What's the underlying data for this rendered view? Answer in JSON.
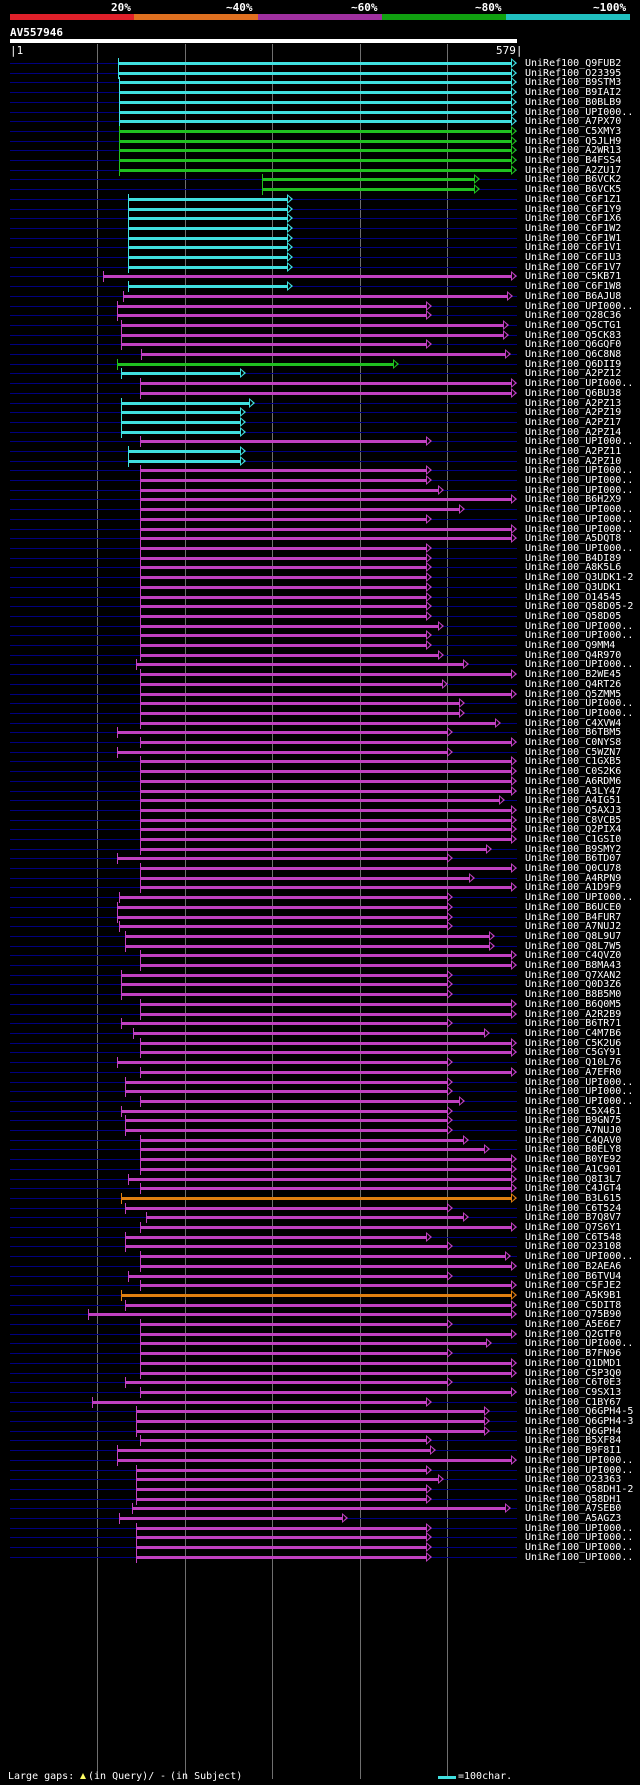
{
  "header": {
    "identity_scale": [
      {
        "label": "20%",
        "color": "#e0202a"
      },
      {
        "label": "~40%",
        "color": "#e07020"
      },
      {
        "label": "~60%",
        "color": "#a030a0"
      },
      {
        "label": "~80%",
        "color": "#10a010"
      },
      {
        "label": "~100%",
        "color": "#20c0c0"
      }
    ],
    "query_id": "AV557946",
    "ruler_start": "1",
    "ruler_end": "579"
  },
  "colors": {
    "cyan": "#40e0e0",
    "green": "#20c020",
    "purple": "#c040c0",
    "orange": "#e08010",
    "base": "#00007f"
  },
  "hits": [
    {
      "label": "UniRef100_Q9FUB2",
      "color": "cyan",
      "start": 124,
      "end": 579
    },
    {
      "label": "UniRef100_O23395",
      "color": "cyan",
      "start": 124,
      "end": 579
    },
    {
      "label": "UniRef100_B9STM3",
      "color": "cyan",
      "start": 125,
      "end": 579
    },
    {
      "label": "UniRef100_B9IAI2",
      "color": "cyan",
      "start": 125,
      "end": 579
    },
    {
      "label": "UniRef100_B0BLB9",
      "color": "cyan",
      "start": 125,
      "end": 579
    },
    {
      "label": "UniRef100_UPI000..",
      "color": "cyan",
      "start": 125,
      "end": 579
    },
    {
      "label": "UniRef100_A7PX70",
      "color": "cyan",
      "start": 125,
      "end": 579
    },
    {
      "label": "UniRef100_C5XMY3",
      "color": "green",
      "start": 125,
      "end": 579
    },
    {
      "label": "UniRef100_Q5JLH9",
      "color": "green",
      "start": 125,
      "end": 579
    },
    {
      "label": "UniRef100_A2WR13",
      "color": "green",
      "start": 125,
      "end": 579
    },
    {
      "label": "UniRef100_B4FSS4",
      "color": "green",
      "start": 125,
      "end": 579
    },
    {
      "label": "UniRef100_A2ZU17",
      "color": "green",
      "start": 125,
      "end": 579
    },
    {
      "label": "UniRef100_B6VCK2",
      "color": "green",
      "start": 288,
      "end": 537
    },
    {
      "label": "UniRef100_B6VCK5",
      "color": "green",
      "start": 288,
      "end": 537
    },
    {
      "label": "UniRef100_C6F1Z1",
      "color": "cyan",
      "start": 135,
      "end": 324
    },
    {
      "label": "UniRef100_C6F1Y9",
      "color": "cyan",
      "start": 135,
      "end": 324
    },
    {
      "label": "UniRef100_C6F1X6",
      "color": "cyan",
      "start": 135,
      "end": 324
    },
    {
      "label": "UniRef100_C6F1W2",
      "color": "cyan",
      "start": 135,
      "end": 324
    },
    {
      "label": "UniRef100_C6F1W1",
      "color": "cyan",
      "start": 135,
      "end": 324
    },
    {
      "label": "UniRef100_C6F1V1",
      "color": "cyan",
      "start": 135,
      "end": 324
    },
    {
      "label": "UniRef100_C6F1U3",
      "color": "cyan",
      "start": 135,
      "end": 324
    },
    {
      "label": "UniRef100_C6F1V7",
      "color": "cyan",
      "start": 135,
      "end": 324
    },
    {
      "label": "UniRef100_C5KB71",
      "color": "purple",
      "start": 107,
      "end": 579
    },
    {
      "label": "UniRef100_C6F1W8",
      "color": "cyan",
      "start": 135,
      "end": 324
    },
    {
      "label": "UniRef100_B6AJU8",
      "color": "purple",
      "start": 130,
      "end": 575
    },
    {
      "label": "UniRef100_UPI000..",
      "color": "purple",
      "start": 123,
      "end": 482
    },
    {
      "label": "UniRef100_Q28C36",
      "color": "purple",
      "start": 123,
      "end": 482
    },
    {
      "label": "UniRef100_Q5CTG1",
      "color": "purple",
      "start": 128,
      "end": 570
    },
    {
      "label": "UniRef100_Q5CK83",
      "color": "purple",
      "start": 128,
      "end": 570
    },
    {
      "label": "UniRef100_Q6GQF0",
      "color": "purple",
      "start": 128,
      "end": 482
    },
    {
      "label": "UniRef100_Q6C8N8",
      "color": "purple",
      "start": 150,
      "end": 572
    },
    {
      "label": "UniRef100_Q6DII9",
      "color": "green",
      "start": 123,
      "end": 444
    },
    {
      "label": "UniRef100_A2PZ12",
      "color": "cyan",
      "start": 128,
      "end": 270
    },
    {
      "label": "UniRef100_UPI000..",
      "color": "purple",
      "start": 149,
      "end": 579
    },
    {
      "label": "UniRef100_Q6BU38",
      "color": "purple",
      "start": 149,
      "end": 579
    },
    {
      "label": "UniRef100_A2PZ13",
      "color": "cyan",
      "start": 128,
      "end": 280
    },
    {
      "label": "UniRef100_A2PZ19",
      "color": "cyan",
      "start": 128,
      "end": 270
    },
    {
      "label": "UniRef100_A2PZ17",
      "color": "cyan",
      "start": 128,
      "end": 270
    },
    {
      "label": "UniRef100_A2PZ14",
      "color": "cyan",
      "start": 128,
      "end": 270
    },
    {
      "label": "UniRef100_UPI000..",
      "color": "purple",
      "start": 149,
      "end": 482
    },
    {
      "label": "UniRef100_A2PZ11",
      "color": "cyan",
      "start": 135,
      "end": 270
    },
    {
      "label": "UniRef100_A2PZ10",
      "color": "cyan",
      "start": 135,
      "end": 270
    },
    {
      "label": "UniRef100_UPI000..",
      "color": "purple",
      "start": 149,
      "end": 482
    },
    {
      "label": "UniRef100_UPI000..",
      "color": "purple",
      "start": 149,
      "end": 482
    },
    {
      "label": "UniRef100_UPI000..",
      "color": "purple",
      "start": 149,
      "end": 496
    },
    {
      "label": "UniRef100_B6H2X9",
      "color": "purple",
      "start": 149,
      "end": 579
    },
    {
      "label": "UniRef100_UPI000..",
      "color": "purple",
      "start": 149,
      "end": 520
    },
    {
      "label": "UniRef100_UPI000..",
      "color": "purple",
      "start": 149,
      "end": 482
    },
    {
      "label": "UniRef100_UPI000..",
      "color": "purple",
      "start": 149,
      "end": 579
    },
    {
      "label": "UniRef100_A5DQT8",
      "color": "purple",
      "start": 149,
      "end": 579
    },
    {
      "label": "UniRef100_UPI000..",
      "color": "purple",
      "start": 149,
      "end": 482
    },
    {
      "label": "UniRef100_B4DI89",
      "color": "purple",
      "start": 149,
      "end": 482
    },
    {
      "label": "UniRef100_A8K5L6",
      "color": "purple",
      "start": 149,
      "end": 482
    },
    {
      "label": "UniRef100_Q3UDK1-2",
      "color": "purple",
      "start": 149,
      "end": 482
    },
    {
      "label": "UniRef100_Q3UDK1",
      "color": "purple",
      "start": 149,
      "end": 482
    },
    {
      "label": "UniRef100_O14545",
      "color": "purple",
      "start": 149,
      "end": 482
    },
    {
      "label": "UniRef100_Q58D05-2",
      "color": "purple",
      "start": 149,
      "end": 482
    },
    {
      "label": "UniRef100_Q58D05",
      "color": "purple",
      "start": 149,
      "end": 482
    },
    {
      "label": "UniRef100_UPI000..",
      "color": "purple",
      "start": 149,
      "end": 496
    },
    {
      "label": "UniRef100_UPI000..",
      "color": "purple",
      "start": 149,
      "end": 482
    },
    {
      "label": "UniRef100_Q9MM4",
      "color": "purple",
      "start": 149,
      "end": 482
    },
    {
      "label": "UniRef100_Q4R970",
      "color": "purple",
      "start": 149,
      "end": 496
    },
    {
      "label": "UniRef100_UPI000..",
      "color": "purple",
      "start": 145,
      "end": 524
    },
    {
      "label": "UniRef100_B2WE45",
      "color": "purple",
      "start": 149,
      "end": 579
    },
    {
      "label": "UniRef100_Q4RT26",
      "color": "purple",
      "start": 149,
      "end": 500
    },
    {
      "label": "UniRef100_Q5ZMM5",
      "color": "purple",
      "start": 149,
      "end": 579
    },
    {
      "label": "UniRef100_UPI000..",
      "color": "purple",
      "start": 149,
      "end": 520
    },
    {
      "label": "UniRef100_UPI000..",
      "color": "purple",
      "start": 149,
      "end": 520
    },
    {
      "label": "UniRef100_C4XVW4",
      "color": "purple",
      "start": 149,
      "end": 561
    },
    {
      "label": "UniRef100_B6TBM5",
      "color": "purple",
      "start": 123,
      "end": 506
    },
    {
      "label": "UniRef100_C0NYS8",
      "color": "purple",
      "start": 149,
      "end": 579
    },
    {
      "label": "UniRef100_C5WZN7",
      "color": "purple",
      "start": 123,
      "end": 506
    },
    {
      "label": "UniRef100_C1GXB5",
      "color": "purple",
      "start": 149,
      "end": 579
    },
    {
      "label": "UniRef100_C0S2K6",
      "color": "purple",
      "start": 149,
      "end": 579
    },
    {
      "label": "UniRef100_A6RDM6",
      "color": "purple",
      "start": 149,
      "end": 579
    },
    {
      "label": "UniRef100_A3LY47",
      "color": "purple",
      "start": 149,
      "end": 579
    },
    {
      "label": "UniRef100_A4IG51",
      "color": "purple",
      "start": 149,
      "end": 565
    },
    {
      "label": "UniRef100_Q5AXJ3",
      "color": "purple",
      "start": 149,
      "end": 579
    },
    {
      "label": "UniRef100_C8VCB5",
      "color": "purple",
      "start": 149,
      "end": 579
    },
    {
      "label": "UniRef100_Q2PIX4",
      "color": "purple",
      "start": 149,
      "end": 579
    },
    {
      "label": "UniRef100_C1GSI0",
      "color": "purple",
      "start": 149,
      "end": 579
    },
    {
      "label": "UniRef100_B9SMY2",
      "color": "purple",
      "start": 149,
      "end": 551
    },
    {
      "label": "UniRef100_B6TD07",
      "color": "purple",
      "start": 123,
      "end": 506
    },
    {
      "label": "UniRef100_Q0CU78",
      "color": "purple",
      "start": 149,
      "end": 579
    },
    {
      "label": "UniRef100_A4RPN9",
      "color": "purple",
      "start": 149,
      "end": 531
    },
    {
      "label": "UniRef100_A1D9F9",
      "color": "purple",
      "start": 149,
      "end": 579
    },
    {
      "label": "UniRef100_UPI000..",
      "color": "purple",
      "start": 125,
      "end": 506
    },
    {
      "label": "UniRef100_B6UCE0",
      "color": "purple",
      "start": 123,
      "end": 506
    },
    {
      "label": "UniRef100_B4FUR7",
      "color": "purple",
      "start": 123,
      "end": 506
    },
    {
      "label": "UniRef100_A7NUJ2",
      "color": "purple",
      "start": 125,
      "end": 506
    },
    {
      "label": "UniRef100_Q8L9U7",
      "color": "purple",
      "start": 132,
      "end": 554
    },
    {
      "label": "UniRef100_Q8L7W5",
      "color": "purple",
      "start": 132,
      "end": 554
    },
    {
      "label": "UniRef100_C4QVZ0",
      "color": "purple",
      "start": 149,
      "end": 579
    },
    {
      "label": "UniRef100_B8MA43",
      "color": "purple",
      "start": 149,
      "end": 579
    },
    {
      "label": "UniRef100_Q7XAN2",
      "color": "purple",
      "start": 128,
      "end": 506
    },
    {
      "label": "UniRef100_Q0D3Z6",
      "color": "purple",
      "start": 128,
      "end": 506
    },
    {
      "label": "UniRef100_B8B5M0",
      "color": "purple",
      "start": 128,
      "end": 506
    },
    {
      "label": "UniRef100_B6Q0M5",
      "color": "purple",
      "start": 149,
      "end": 579
    },
    {
      "label": "UniRef100_A2R2B9",
      "color": "purple",
      "start": 149,
      "end": 579
    },
    {
      "label": "UniRef100_B6TR71",
      "color": "purple",
      "start": 128,
      "end": 506
    },
    {
      "label": "UniRef100_C4M7B6",
      "color": "purple",
      "start": 141,
      "end": 548
    },
    {
      "label": "UniRef100_C5K2U6",
      "color": "purple",
      "start": 149,
      "end": 579
    },
    {
      "label": "UniRef100_C5GY91",
      "color": "purple",
      "start": 149,
      "end": 579
    },
    {
      "label": "UniRef100_Q10L76",
      "color": "purple",
      "start": 123,
      "end": 506
    },
    {
      "label": "UniRef100_A7EFR0",
      "color": "purple",
      "start": 149,
      "end": 579
    },
    {
      "label": "UniRef100_UPI000..",
      "color": "purple",
      "start": 132,
      "end": 506
    },
    {
      "label": "UniRef100_UPI000..",
      "color": "purple",
      "start": 132,
      "end": 506
    },
    {
      "label": "UniRef100_UPI000..",
      "color": "purple",
      "start": 149,
      "end": 520
    },
    {
      "label": "UniRef100_C5X461",
      "color": "purple",
      "start": 128,
      "end": 506
    },
    {
      "label": "UniRef100_B9GN75",
      "color": "purple",
      "start": 132,
      "end": 506
    },
    {
      "label": "UniRef100_A7NUJ0",
      "color": "purple",
      "start": 132,
      "end": 506
    },
    {
      "label": "UniRef100_C4QAV0",
      "color": "purple",
      "start": 149,
      "end": 524
    },
    {
      "label": "UniRef100_B0ELY8",
      "color": "purple",
      "start": 149,
      "end": 548
    },
    {
      "label": "UniRef100_B0YE92",
      "color": "purple",
      "start": 149,
      "end": 579
    },
    {
      "label": "UniRef100_A1C901",
      "color": "purple",
      "start": 149,
      "end": 579
    },
    {
      "label": "UniRef100_Q8I3L7",
      "color": "purple",
      "start": 135,
      "end": 579
    },
    {
      "label": "UniRef100_C4JGT4",
      "color": "purple",
      "start": 149,
      "end": 579
    },
    {
      "label": "UniRef100_B3L615",
      "color": "orange",
      "start": 128,
      "end": 579
    },
    {
      "label": "UniRef100_C6T524",
      "color": "purple",
      "start": 132,
      "end": 506
    },
    {
      "label": "UniRef100_B7Q8V7",
      "color": "purple",
      "start": 156,
      "end": 524
    },
    {
      "label": "UniRef100_Q7S6Y1",
      "color": "purple",
      "start": 149,
      "end": 579
    },
    {
      "label": "UniRef100_C6T548",
      "color": "purple",
      "start": 132,
      "end": 482
    },
    {
      "label": "UniRef100_O23108",
      "color": "purple",
      "start": 132,
      "end": 506
    },
    {
      "label": "UniRef100_UPI000..",
      "color": "purple",
      "start": 149,
      "end": 572
    },
    {
      "label": "UniRef100_B2AEA6",
      "color": "purple",
      "start": 149,
      "end": 579
    },
    {
      "label": "UniRef100_B6TVU4",
      "color": "purple",
      "start": 135,
      "end": 506
    },
    {
      "label": "UniRef100_C5FJE2",
      "color": "purple",
      "start": 149,
      "end": 579
    },
    {
      "label": "UniRef100_A5K9B1",
      "color": "orange",
      "start": 128,
      "end": 579
    },
    {
      "label": "UniRef100_C5DIT8",
      "color": "purple",
      "start": 132,
      "end": 579
    },
    {
      "label": "UniRef100_Q75B90",
      "color": "purple",
      "start": 90,
      "end": 579
    },
    {
      "label": "UniRef100_A5E6E7",
      "color": "purple",
      "start": 149,
      "end": 506
    },
    {
      "label": "UniRef100_Q2GTF0",
      "color": "purple",
      "start": 149,
      "end": 579
    },
    {
      "label": "UniRef100_UPI000..",
      "color": "purple",
      "start": 149,
      "end": 551
    },
    {
      "label": "UniRef100_B7FN96",
      "color": "purple",
      "start": 149,
      "end": 506
    },
    {
      "label": "UniRef100_Q1DMD1",
      "color": "purple",
      "start": 149,
      "end": 579
    },
    {
      "label": "UniRef100_C5P3Q0",
      "color": "purple",
      "start": 149,
      "end": 579
    },
    {
      "label": "UniRef100_C6T0E3",
      "color": "purple",
      "start": 132,
      "end": 506
    },
    {
      "label": "UniRef100_C9SX13",
      "color": "purple",
      "start": 149,
      "end": 579
    },
    {
      "label": "UniRef100_C1BY67",
      "color": "purple",
      "start": 95,
      "end": 482
    },
    {
      "label": "UniRef100_Q6GPH4-5",
      "color": "purple",
      "start": 145,
      "end": 548
    },
    {
      "label": "UniRef100_Q6GPH4-3",
      "color": "purple",
      "start": 145,
      "end": 548
    },
    {
      "label": "UniRef100_Q6GPH4",
      "color": "purple",
      "start": 145,
      "end": 548
    },
    {
      "label": "UniRef100_B5XF84",
      "color": "purple",
      "start": 149,
      "end": 482
    },
    {
      "label": "UniRef100_B9F8I1",
      "color": "purple",
      "start": 123,
      "end": 487
    },
    {
      "label": "UniRef100_UPI000..",
      "color": "purple",
      "start": 123,
      "end": 579
    },
    {
      "label": "UniRef100_UPI000..",
      "color": "purple",
      "start": 145,
      "end": 482
    },
    {
      "label": "UniRef100_O23363",
      "color": "purple",
      "start": 145,
      "end": 496
    },
    {
      "label": "UniRef100_Q58DH1-2",
      "color": "purple",
      "start": 145,
      "end": 482
    },
    {
      "label": "UniRef100_Q58DH1",
      "color": "purple",
      "start": 145,
      "end": 482
    },
    {
      "label": "UniRef100_A7SEB0",
      "color": "purple",
      "start": 140,
      "end": 572
    },
    {
      "label": "UniRef100_A5AGZ3",
      "color": "purple",
      "start": 125,
      "end": 386
    },
    {
      "label": "UniRef100_UPI000..",
      "color": "purple",
      "start": 145,
      "end": 482
    },
    {
      "label": "UniRef100_UPI000..",
      "color": "purple",
      "start": 145,
      "end": 482
    },
    {
      "label": "UniRef100_UPI000..",
      "color": "purple",
      "start": 145,
      "end": 482
    },
    {
      "label": "UniRef100_UPI000..",
      "color": "purple",
      "start": 145,
      "end": 482
    }
  ],
  "footer": {
    "large_gaps_label": "Large gaps:",
    "in_query_label": "(in Query)/",
    "dash_symbol": "-",
    "in_subject_label": "(in Subject)",
    "scale_label": "=100char."
  }
}
